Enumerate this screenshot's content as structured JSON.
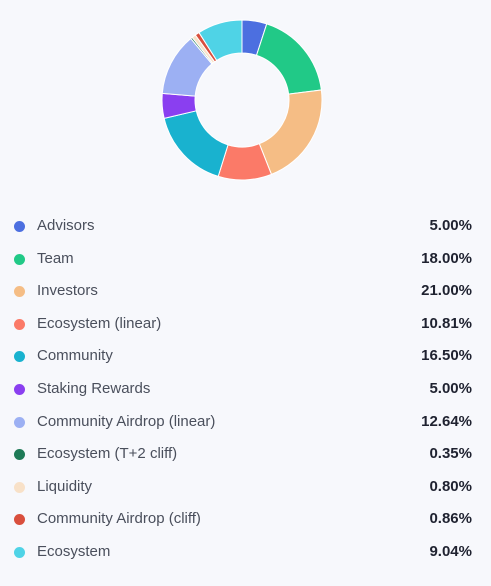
{
  "chart_data": {
    "type": "pie",
    "variant": "donut",
    "legend_placement": "bottom",
    "series": [
      {
        "name": "Advisors",
        "value": 5.0,
        "label": "5.00%",
        "color": "#4c6fe0"
      },
      {
        "name": "Team",
        "value": 18.0,
        "label": "18.00%",
        "color": "#21c987"
      },
      {
        "name": "Investors",
        "value": 21.0,
        "label": "21.00%",
        "color": "#f5bd85"
      },
      {
        "name": "Ecosystem (linear)",
        "value": 10.81,
        "label": "10.81%",
        "color": "#fb7a68"
      },
      {
        "name": "Community",
        "value": 16.5,
        "label": "16.50%",
        "color": "#19b2cf"
      },
      {
        "name": "Staking Rewards",
        "value": 5.0,
        "label": "5.00%",
        "color": "#8a3ff0"
      },
      {
        "name": "Community Airdrop (linear)",
        "value": 12.64,
        "label": "12.64%",
        "color": "#9cb0f3"
      },
      {
        "name": "Ecosystem (T+2 cliff)",
        "value": 0.35,
        "label": "0.35%",
        "color": "#1e7a57"
      },
      {
        "name": "Liquidity",
        "value": 0.8,
        "label": "0.80%",
        "color": "#f8e1c8"
      },
      {
        "name": "Community Airdrop (cliff)",
        "value": 0.86,
        "label": "0.86%",
        "color": "#d94f3d"
      },
      {
        "name": "Ecosystem",
        "value": 9.04,
        "label": "9.04%",
        "color": "#4fd3e6"
      }
    ]
  }
}
